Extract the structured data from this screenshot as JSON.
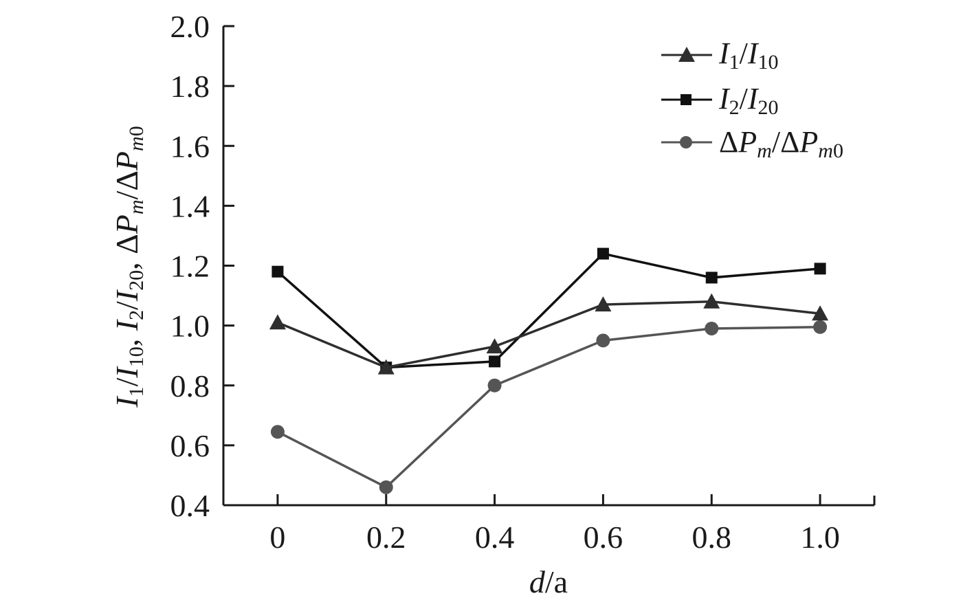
{
  "chart_data": {
    "type": "line",
    "title": "",
    "x": [
      0,
      0.2,
      0.4,
      0.6,
      0.8,
      1.0
    ],
    "x_tick_labels": [
      "0",
      "0.2",
      "0.4",
      "0.6",
      "0.8",
      "1.0"
    ],
    "xlim": [
      -0.1,
      1.1
    ],
    "ylim": [
      0.4,
      2.0
    ],
    "y_ticks": [
      0.4,
      0.6,
      0.8,
      1.0,
      1.2,
      1.4,
      1.6,
      1.8,
      2.0
    ],
    "y_tick_labels": [
      "0.4",
      "0.6",
      "0.8",
      "1.0",
      "1.2",
      "1.4",
      "1.6",
      "1.8",
      "2.0"
    ],
    "xlabel": "d/a",
    "ylabel": "I1/I10, I2/I20, ΔPm/ΔPm0",
    "legend_position": "top-right",
    "grid": false,
    "series": [
      {
        "name": "I1/I10",
        "marker": "triangle",
        "color": "#2e2e2e",
        "values": [
          1.01,
          0.86,
          0.93,
          1.07,
          1.08,
          1.04
        ]
      },
      {
        "name": "I2/I20",
        "marker": "square",
        "color": "#111111",
        "values": [
          1.18,
          0.86,
          0.88,
          1.24,
          1.16,
          1.19
        ]
      },
      {
        "name": "ΔPm/ΔPm0",
        "marker": "circle",
        "color": "#555555",
        "values": [
          0.645,
          0.46,
          0.8,
          0.95,
          0.99,
          0.995
        ]
      }
    ]
  }
}
